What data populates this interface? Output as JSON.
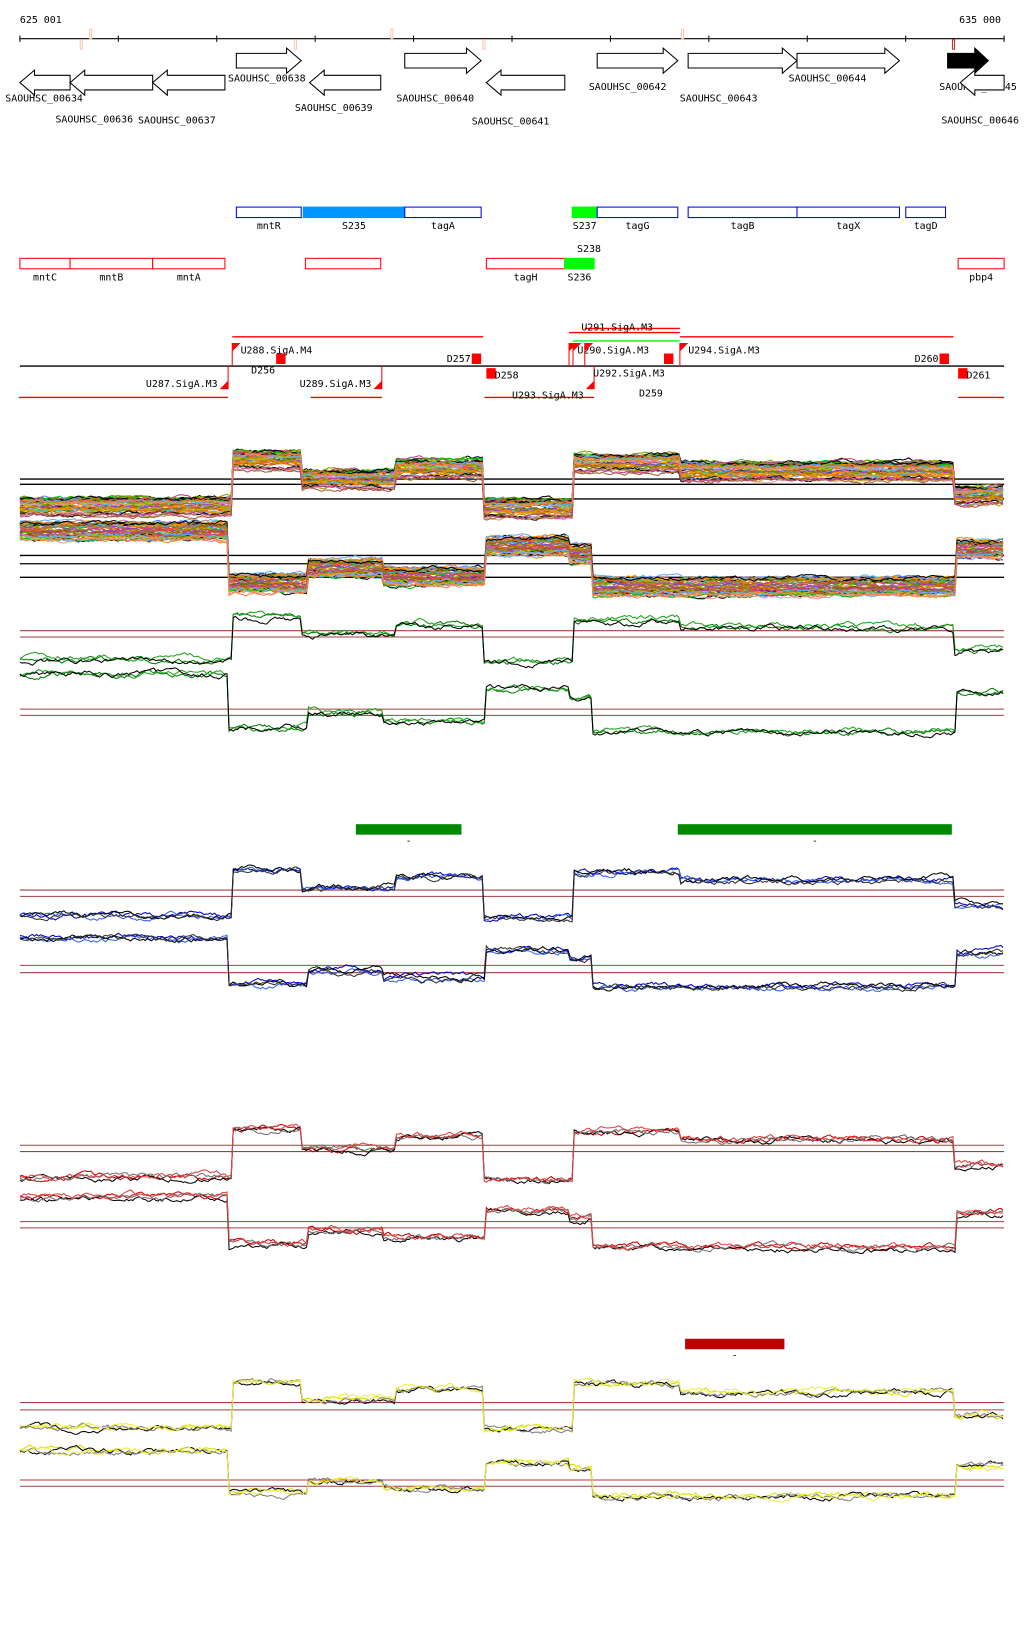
{
  "axis": {
    "start": 625001,
    "end": 635000,
    "start_label": "625 001",
    "end_label": "635 000",
    "marks": [
      625625,
      625720,
      627800,
      628780,
      629715,
      631734,
      634486
    ]
  },
  "genes": [
    {
      "name": "SAOUHSC_00634",
      "start": 625001,
      "end": 625511,
      "strand": "-",
      "filled": false
    },
    {
      "name": "SAOUHSC_00636",
      "start": 625511,
      "end": 626350,
      "strand": "-",
      "filled": false
    },
    {
      "name": "SAOUHSC_00637",
      "start": 626350,
      "end": 627084,
      "strand": "-",
      "filled": false
    },
    {
      "name": "SAOUHSC_00638",
      "start": 627200,
      "end": 627859,
      "strand": "+",
      "filled": false
    },
    {
      "name": "SAOUHSC_00639",
      "start": 627944,
      "end": 628667,
      "strand": "-",
      "filled": false
    },
    {
      "name": "SAOUHSC_00640",
      "start": 628911,
      "end": 629687,
      "strand": "+",
      "filled": false
    },
    {
      "name": "SAOUHSC_00641",
      "start": 629740,
      "end": 630537,
      "strand": "-",
      "filled": false
    },
    {
      "name": "SAOUHSC_00642",
      "start": 630866,
      "end": 631685,
      "strand": "+",
      "filled": false
    },
    {
      "name": "SAOUHSC_00643",
      "start": 631790,
      "end": 632896,
      "strand": "+",
      "filled": false
    },
    {
      "name": "SAOUHSC_00644",
      "start": 632896,
      "end": 633937,
      "strand": "+",
      "filled": false
    },
    {
      "name": "SAOUHSC_00645",
      "start": 634426,
      "end": 634840,
      "strand": "+",
      "filled": true
    },
    {
      "name": "SAOUHSC_00646",
      "start": 634554,
      "end": 635000,
      "strand": "-",
      "filled": false
    }
  ],
  "operons": {
    "plus": [
      {
        "label": "mntR",
        "start": 627200,
        "end": 627859,
        "fill": ""
      },
      {
        "label": "S235",
        "start": 627880,
        "end": 628911,
        "fill": "#0096ff"
      },
      {
        "label": "tagA",
        "start": 628911,
        "end": 629687,
        "fill": ""
      },
      {
        "label": "S237",
        "start": 630612,
        "end": 630866,
        "fill": "#00ff00"
      },
      {
        "label": "S238",
        "start": 630700,
        "end": 630866,
        "fill": "#00ff00"
      },
      {
        "label": "tagG",
        "start": 630866,
        "end": 631685,
        "fill": ""
      },
      {
        "label": "tagB",
        "start": 631790,
        "end": 632896,
        "fill": ""
      },
      {
        "label": "tagX",
        "start": 632896,
        "end": 633937,
        "fill": ""
      },
      {
        "label": "tagD",
        "start": 634001,
        "end": 634405,
        "fill": ""
      }
    ],
    "minus": [
      {
        "label": "mntC",
        "start": 625001,
        "end": 625511,
        "fill": ""
      },
      {
        "label": "mntB",
        "start": 625511,
        "end": 626350,
        "fill": ""
      },
      {
        "label": "mntA",
        "start": 626350,
        "end": 627084,
        "fill": ""
      },
      {
        "label": "",
        "start": 627901,
        "end": 628667,
        "fill": ""
      },
      {
        "label": "tagH",
        "start": 629740,
        "end": 630537,
        "fill": ""
      },
      {
        "label": "S236",
        "start": 630537,
        "end": 630835,
        "fill": "#00ff00"
      },
      {
        "label": "pbp4",
        "start": 634533,
        "end": 635000,
        "fill": ""
      }
    ]
  },
  "regulatory": {
    "spans_plus": [
      [
        627158,
        629708,
        "#ff0000"
      ],
      [
        630620,
        631706,
        "#00ff00"
      ],
      [
        630580,
        631706,
        "#ff0000"
      ],
      [
        630740,
        631706,
        "#ff0000"
      ],
      [
        631706,
        634486,
        "#ff0000"
      ]
    ],
    "spans_minus": [
      [
        624990,
        627116,
        "#ff0000"
      ],
      [
        627955,
        628678,
        "#ff0000"
      ],
      [
        629720,
        630835,
        "#ff0000"
      ],
      [
        634533,
        635000,
        "#ff0000"
      ]
    ],
    "elements": [
      {
        "label": "U288.SigA.M4",
        "pos": 627158,
        "kind": "U",
        "side": "above"
      },
      {
        "label": "D256",
        "pos": 627700,
        "kind": "D",
        "side": "above"
      },
      {
        "label": "D257",
        "pos": 629687,
        "kind": "D",
        "side": "above"
      },
      {
        "label": "D258",
        "pos": 629740,
        "kind": "D",
        "side": "below"
      },
      {
        "label": "U293.SigA.M3",
        "pos": 630835,
        "kind": "U",
        "side": "below"
      },
      {
        "label": "U287.SigA.M3",
        "pos": 627116,
        "kind": "U",
        "side": "below"
      },
      {
        "label": "U289.SigA.M3",
        "pos": 628678,
        "kind": "U",
        "side": "below"
      },
      {
        "label": "U290.SigA.M3",
        "pos": 630580,
        "kind": "U",
        "side": "above"
      },
      {
        "label": "U291.SigA.M3",
        "pos": 630620,
        "kind": "U",
        "side": "above"
      },
      {
        "label": "U292.SigA.M3",
        "pos": 630740,
        "kind": "U",
        "side": "above"
      },
      {
        "label": "D259",
        "pos": 631640,
        "kind": "D",
        "side": "above"
      },
      {
        "label": "U294.SigA.M3",
        "pos": 631706,
        "kind": "U",
        "side": "above"
      },
      {
        "label": "D260",
        "pos": 634440,
        "kind": "D",
        "side": "above"
      },
      {
        "label": "D261",
        "pos": 634533,
        "kind": "D",
        "side": "below"
      }
    ]
  },
  "profile": {
    "plus_segments": [
      [
        625001,
        0.1
      ],
      [
        627158,
        0.95
      ],
      [
        627859,
        0.6
      ],
      [
        628816,
        0.8
      ],
      [
        629708,
        0.06
      ],
      [
        630612,
        0.9
      ],
      [
        631706,
        0.75
      ],
      [
        634486,
        0.3
      ]
    ],
    "minus_segments": [
      [
        625001,
        0.97
      ],
      [
        627116,
        0.13
      ],
      [
        627913,
        0.37
      ],
      [
        628678,
        0.24
      ],
      [
        629740,
        0.73
      ],
      [
        630590,
        0.6
      ],
      [
        630803,
        0.08
      ],
      [
        634501,
        0.68
      ]
    ]
  },
  "panels": [
    {
      "id": "multi",
      "colors": [
        "#e06030",
        "#80a000",
        "#c04080",
        "#60b0ff",
        "#ff8040",
        "#a06030",
        "#00c000",
        "#8080c0",
        "#c0a000",
        "#ff4060",
        "#606000",
        "#40c0c0",
        "#d08080",
        "#9040c0",
        "#808000",
        "#ff9000",
        "#4080ff",
        "#c06000",
        "#a0d000",
        "#e0a0a0"
      ],
      "ref": "#000000"
    },
    {
      "id": "green",
      "colors": [
        "#008000",
        "#20a020",
        "#000000"
      ],
      "ref": "#a04040"
    },
    {
      "id": "blue",
      "colors": [
        "#0000cc",
        "#3060ff",
        "#000000",
        "#303030"
      ],
      "ref": "#a04040"
    },
    {
      "id": "red",
      "colors": [
        "#cc0000",
        "#000000",
        "#707070",
        "#e04040"
      ],
      "ref": "#a04040"
    },
    {
      "id": "yellow",
      "colors": [
        "#dddd00",
        "#000000",
        "#808080",
        "#eeee40"
      ],
      "ref": "#a04040"
    }
  ],
  "bars": [
    {
      "start": 628414,
      "end": 629487,
      "color": "#008800",
      "label": "-"
    },
    {
      "start": 631685,
      "end": 634469,
      "color": "#008800",
      "label": "-"
    },
    {
      "start": 631759,
      "end": 632768,
      "color": "#bb0000",
      "label": "-"
    }
  ]
}
